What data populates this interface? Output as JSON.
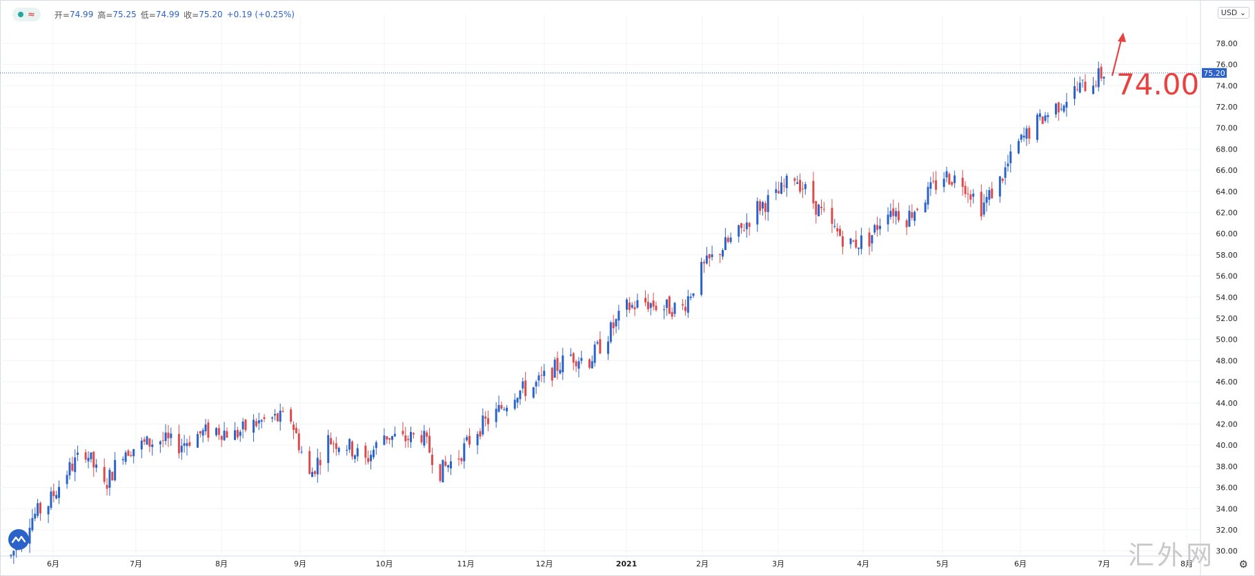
{
  "legend": {
    "open_label": "开=",
    "open": "74.99",
    "high_label": "高=",
    "high": "75.25",
    "low_label": "低=",
    "low": "74.99",
    "close_label": "收=",
    "close": "75.20",
    "change": "+0.19",
    "change_pct": "(+0.25%)",
    "wave_glyph": "≈"
  },
  "currency": "USD",
  "annotation": "74.00",
  "watermark": "汇外网",
  "icons": {
    "logo": "tradingview-logo-icon",
    "settings": "gear-icon"
  },
  "colors": {
    "up": "#2962c9",
    "down": "#e0494a",
    "annotation": "#e8413f",
    "grid": "#f0f3f7",
    "price_line": "#2a62c9"
  },
  "chart_data": {
    "type": "candlestick",
    "title": "",
    "y_axis": {
      "ticks": [
        "30.00",
        "32.00",
        "34.00",
        "36.00",
        "38.00",
        "40.00",
        "42.00",
        "44.00",
        "46.00",
        "48.00",
        "50.00",
        "52.00",
        "54.00",
        "56.00",
        "58.00",
        "60.00",
        "62.00",
        "64.00",
        "66.00",
        "68.00",
        "70.00",
        "72.00",
        "74.00",
        "76.00",
        "78.00"
      ],
      "min": 29,
      "max": 80
    },
    "x_axis": {
      "labels": [
        "6月",
        "7月",
        "8月",
        "9月",
        "10月",
        "11月",
        "12月",
        "2021",
        "2月",
        "3月",
        "4月",
        "5月",
        "6月",
        "7月",
        "8月"
      ]
    },
    "last_price": 75.2,
    "approx_daily_close": [
      {
        "d": "2020-05-18",
        "c": 29.5
      },
      {
        "d": "2020-05-25",
        "c": 33.0
      },
      {
        "d": "2020-06-01",
        "c": 34.5
      },
      {
        "d": "2020-06-08",
        "c": 37.5
      },
      {
        "d": "2020-06-15",
        "c": 39.5
      },
      {
        "d": "2020-06-22",
        "c": 36.0
      },
      {
        "d": "2020-06-29",
        "c": 39.5
      },
      {
        "d": "2020-07-06",
        "c": 40.0
      },
      {
        "d": "2020-07-13",
        "c": 40.5
      },
      {
        "d": "2020-07-20",
        "c": 40.0
      },
      {
        "d": "2020-07-27",
        "c": 41.0
      },
      {
        "d": "2020-08-03",
        "c": 41.5
      },
      {
        "d": "2020-08-10",
        "c": 41.0
      },
      {
        "d": "2020-08-17",
        "c": 42.0
      },
      {
        "d": "2020-08-24",
        "c": 42.5
      },
      {
        "d": "2020-08-31",
        "c": 42.5
      },
      {
        "d": "2020-09-07",
        "c": 37.0
      },
      {
        "d": "2020-09-14",
        "c": 40.5
      },
      {
        "d": "2020-09-21",
        "c": 40.0
      },
      {
        "d": "2020-09-28",
        "c": 38.5
      },
      {
        "d": "2020-10-05",
        "c": 41.0
      },
      {
        "d": "2020-10-12",
        "c": 40.5
      },
      {
        "d": "2020-10-19",
        "c": 41.0
      },
      {
        "d": "2020-10-26",
        "c": 37.5
      },
      {
        "d": "2020-11-02",
        "c": 39.0
      },
      {
        "d": "2020-11-09",
        "c": 41.5
      },
      {
        "d": "2020-11-16",
        "c": 43.0
      },
      {
        "d": "2020-11-23",
        "c": 45.0
      },
      {
        "d": "2020-11-30",
        "c": 45.5
      },
      {
        "d": "2020-12-07",
        "c": 47.0
      },
      {
        "d": "2020-12-14",
        "c": 48.5
      },
      {
        "d": "2020-12-21",
        "c": 48.0
      },
      {
        "d": "2020-12-28",
        "c": 50.5
      },
      {
        "d": "2021-01-04",
        "c": 53.0
      },
      {
        "d": "2021-01-11",
        "c": 53.5
      },
      {
        "d": "2021-01-18",
        "c": 53.0
      },
      {
        "d": "2021-01-25",
        "c": 53.0
      },
      {
        "d": "2021-02-01",
        "c": 56.5
      },
      {
        "d": "2021-02-08",
        "c": 58.5
      },
      {
        "d": "2021-02-15",
        "c": 60.0
      },
      {
        "d": "2021-02-22",
        "c": 62.5
      },
      {
        "d": "2021-03-01",
        "c": 63.5
      },
      {
        "d": "2021-03-08",
        "c": 65.5
      },
      {
        "d": "2021-03-15",
        "c": 63.0
      },
      {
        "d": "2021-03-22",
        "c": 60.5
      },
      {
        "d": "2021-03-29",
        "c": 59.0
      },
      {
        "d": "2021-04-05",
        "c": 59.5
      },
      {
        "d": "2021-04-12",
        "c": 62.5
      },
      {
        "d": "2021-04-19",
        "c": 61.5
      },
      {
        "d": "2021-04-26",
        "c": 63.5
      },
      {
        "d": "2021-05-03",
        "c": 65.5
      },
      {
        "d": "2021-05-10",
        "c": 65.0
      },
      {
        "d": "2021-05-17",
        "c": 62.5
      },
      {
        "d": "2021-05-24",
        "c": 65.0
      },
      {
        "d": "2021-05-31",
        "c": 68.5
      },
      {
        "d": "2021-06-07",
        "c": 70.5
      },
      {
        "d": "2021-06-14",
        "c": 72.0
      },
      {
        "d": "2021-06-21",
        "c": 73.5
      },
      {
        "d": "2021-06-28",
        "c": 74.5
      },
      {
        "d": "2021-07-02",
        "c": 75.2
      }
    ]
  }
}
